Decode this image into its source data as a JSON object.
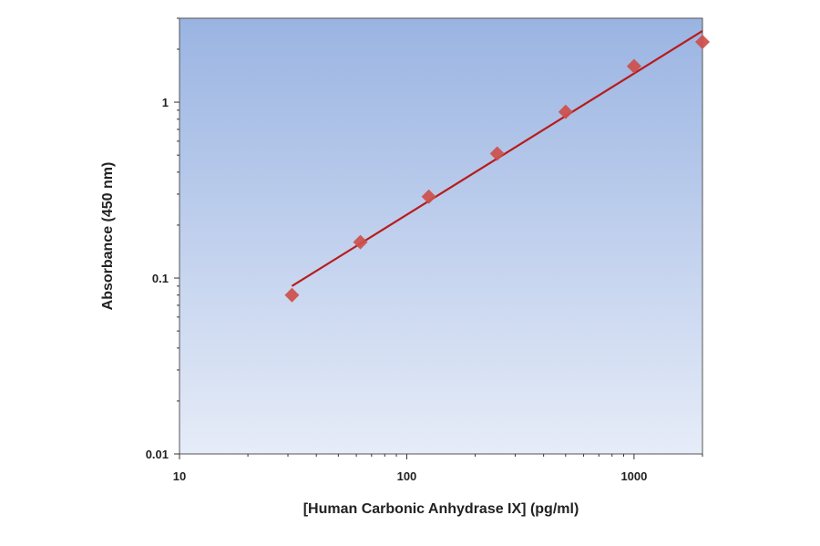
{
  "chart_data": {
    "type": "scatter",
    "title": "",
    "xlabel": "[Human Carbonic Anhydrase IX] (pg/ml)",
    "ylabel": "Absorbance (450 nm)",
    "xscale": "log",
    "yscale": "log",
    "xlim": [
      10,
      2000
    ],
    "ylim": [
      0.01,
      3
    ],
    "xticks": [
      10,
      100,
      1000
    ],
    "xtick_labels": [
      "10",
      "100",
      "1000"
    ],
    "yticks": [
      0.01,
      0.1,
      1
    ],
    "ytick_labels": [
      "0.01",
      "0.1",
      "1"
    ],
    "grid": false,
    "legend": "none",
    "points": {
      "x": [
        31.25,
        62.5,
        125,
        250,
        500,
        1000,
        2000
      ],
      "y": [
        0.08,
        0.16,
        0.29,
        0.51,
        0.88,
        1.6,
        2.2
      ]
    },
    "fit_line": {
      "x": [
        31.25,
        2000
      ],
      "y": [
        0.09,
        2.54
      ]
    },
    "colors": {
      "background_top": "#9ab4e2",
      "background_bottom": "#e6ecf8",
      "marker": "#cd4f4a",
      "line": "#b81c1c"
    }
  }
}
